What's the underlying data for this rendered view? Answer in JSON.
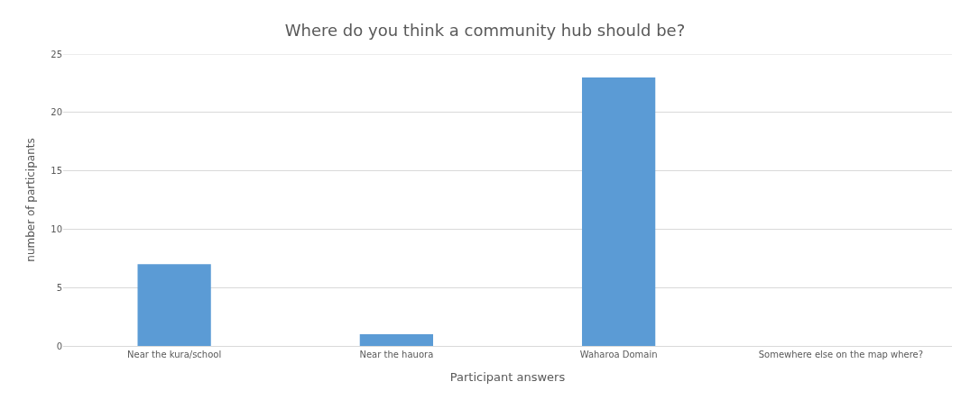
{
  "chart_data": {
    "type": "bar",
    "title": "Where do you think a community hub should be?",
    "xlabel": "Participant answers",
    "ylabel": "number of participants",
    "categories": [
      "Near the kura/school",
      "Near the hauora",
      "Waharoa Domain",
      "Somewhere else on the map where?"
    ],
    "values": [
      7,
      1,
      23,
      0
    ],
    "color": "#5b9bd5",
    "ylim": [
      0,
      25
    ],
    "yticks": [
      0,
      5,
      10,
      15,
      20,
      25
    ],
    "grid": "y"
  }
}
